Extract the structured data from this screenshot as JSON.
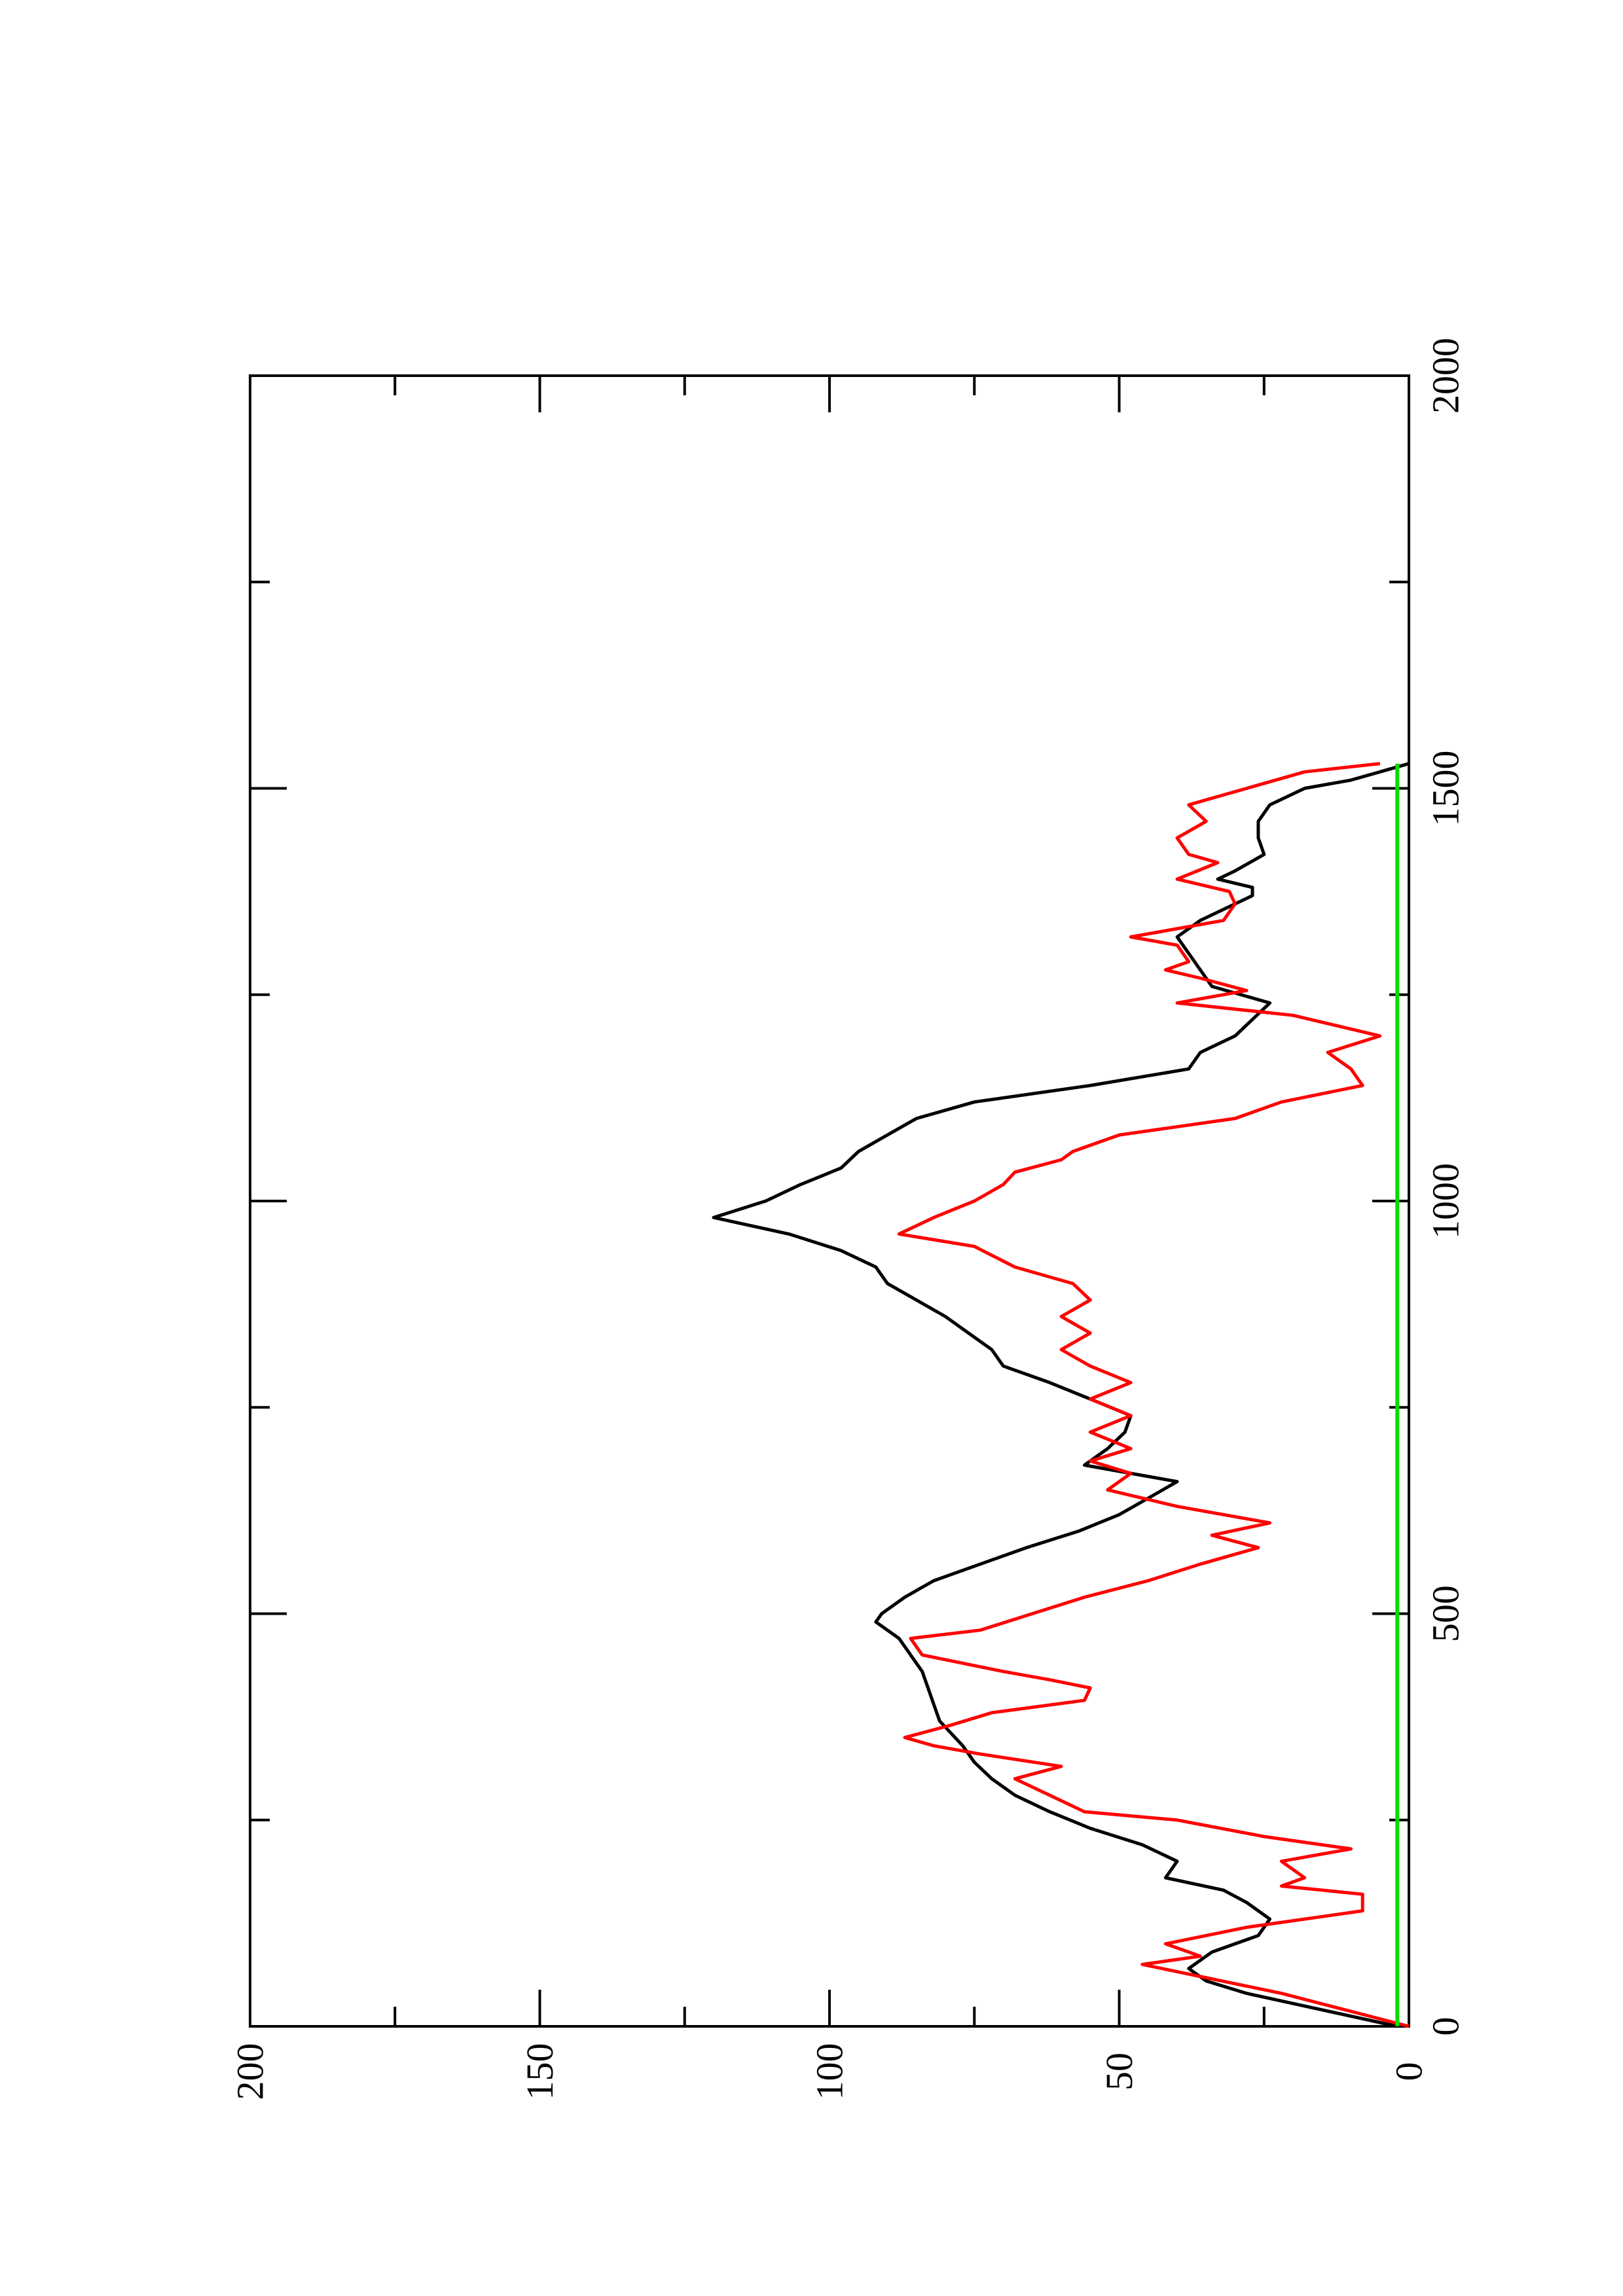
{
  "chart_data": {
    "type": "line",
    "orientation": "rotated-90-ccw",
    "title": "",
    "xlabel": "",
    "ylabel": "",
    "xlim": [
      0,
      2000
    ],
    "ylim": [
      0,
      200
    ],
    "x_ticks": [
      "0",
      "500",
      "1000",
      "1500",
      "2000"
    ],
    "y_ticks": [
      "0",
      "50",
      "100",
      "150",
      "200"
    ],
    "grid": false,
    "legend": "none",
    "series": [
      {
        "color": "#000000",
        "x": [
          0,
          20,
          40,
          55,
          70,
          90,
          110,
          130,
          150,
          165,
          180,
          200,
          220,
          240,
          260,
          280,
          300,
          320,
          340,
          355,
          370,
          390,
          410,
          430,
          450,
          470,
          480,
          490,
          500,
          520,
          540,
          560,
          580,
          600,
          620,
          640,
          660,
          680,
          700,
          720,
          740,
          760,
          780,
          800,
          820,
          840,
          860,
          880,
          900,
          920,
          940,
          960,
          980,
          1000,
          1020,
          1040,
          1060,
          1080,
          1100,
          1120,
          1140,
          1160,
          1180,
          1200,
          1220,
          1240,
          1260,
          1280,
          1300,
          1320,
          1340,
          1360,
          1370,
          1380,
          1390,
          1400,
          1420,
          1440,
          1460,
          1480,
          1500,
          1510,
          1520,
          1530
        ],
        "y": [
          2,
          15,
          28,
          35,
          38,
          34,
          26,
          24,
          28,
          32,
          42,
          40,
          46,
          55,
          62,
          68,
          72,
          75,
          77,
          79,
          81,
          82,
          83,
          84,
          86,
          88,
          90,
          92,
          91,
          87,
          82,
          74,
          66,
          57,
          50,
          45,
          40,
          56,
          52,
          49,
          48,
          55,
          62,
          70,
          72,
          76,
          80,
          85,
          90,
          92,
          98,
          107,
          120,
          111,
          105,
          98,
          95,
          90,
          85,
          75,
          55,
          38,
          36,
          30,
          27,
          24,
          34,
          36,
          38,
          40,
          36,
          30,
          27,
          27,
          33,
          30,
          25,
          26,
          26,
          24,
          18,
          10,
          5,
          0
        ]
      },
      {
        "color": "#ff0000",
        "x": [
          0,
          40,
          75,
          85,
          100,
          120,
          140,
          160,
          170,
          180,
          200,
          215,
          230,
          250,
          260,
          280,
          300,
          315,
          330,
          340,
          350,
          365,
          380,
          395,
          410,
          420,
          430,
          450,
          470,
          480,
          500,
          520,
          540,
          560,
          580,
          595,
          610,
          630,
          650,
          670,
          685,
          700,
          720,
          740,
          760,
          780,
          800,
          820,
          840,
          860,
          880,
          900,
          920,
          945,
          960,
          980,
          1000,
          1020,
          1035,
          1050,
          1060,
          1080,
          1100,
          1120,
          1140,
          1160,
          1180,
          1200,
          1225,
          1240,
          1255,
          1270,
          1280,
          1290,
          1310,
          1320,
          1340,
          1360,
          1375,
          1390,
          1410,
          1420,
          1440,
          1460,
          1480,
          1500,
          1520,
          1530
        ],
        "y": [
          0,
          22,
          46,
          36,
          42,
          28,
          8,
          8,
          22,
          18,
          22,
          10,
          25,
          40,
          56,
          62,
          68,
          60,
          74,
          82,
          87,
          79,
          72,
          56,
          55,
          62,
          70,
          84,
          86,
          74,
          65,
          56,
          45,
          36,
          26,
          34,
          24,
          40,
          52,
          48,
          55,
          48,
          55,
          48,
          55,
          48,
          55,
          60,
          55,
          60,
          55,
          58,
          68,
          75,
          88,
          82,
          75,
          70,
          68,
          60,
          58,
          50,
          30,
          22,
          8,
          10,
          14,
          5,
          20,
          40,
          28,
          36,
          42,
          38,
          40,
          48,
          32,
          30,
          31,
          40,
          33,
          38,
          40,
          35,
          38,
          28,
          18,
          5
        ]
      },
      {
        "color": "#00dd00",
        "x": [
          0,
          100,
          200,
          300,
          400,
          500,
          600,
          700,
          800,
          900,
          1000,
          1100,
          1200,
          1300,
          1400,
          1500,
          1530
        ],
        "y": [
          2,
          2,
          2,
          2,
          2,
          2,
          2,
          2,
          2,
          2,
          2,
          2,
          2,
          2,
          2,
          2,
          2
        ]
      }
    ]
  }
}
